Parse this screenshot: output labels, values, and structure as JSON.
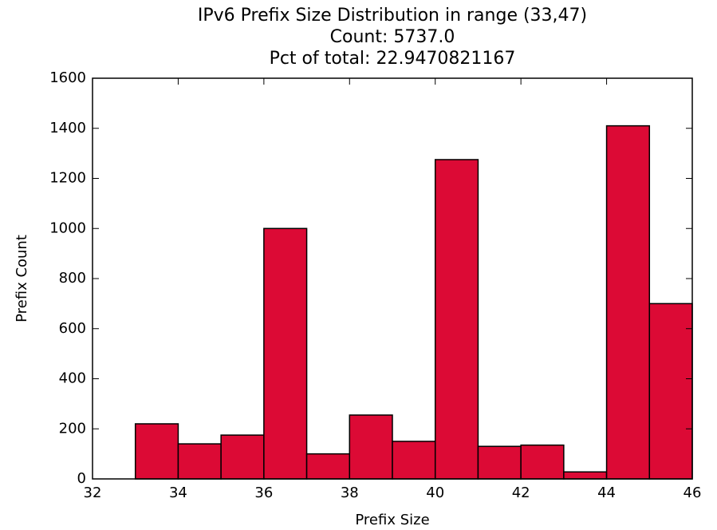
{
  "chart_data": {
    "type": "histogram",
    "title": [
      "IPv6 Prefix Size Distribution in range (33,47)",
      "Count: 5737.0",
      "Pct of total: 22.9470821167"
    ],
    "x_label": "Prefix Size",
    "y_label": "Prefix Count",
    "bins": [
      33,
      34,
      35,
      36,
      37,
      38,
      39,
      40,
      41,
      42,
      43,
      44,
      45,
      46
    ],
    "values": [
      220,
      140,
      175,
      1000,
      100,
      255,
      150,
      1275,
      130,
      135,
      28,
      1410,
      700
    ],
    "color": "#dc0a35",
    "xlim": [
      32,
      46
    ],
    "xticks": [
      32,
      34,
      36,
      38,
      40,
      42,
      44,
      46
    ],
    "ylim": [
      0,
      1600
    ],
    "yticks": [
      0,
      200,
      400,
      600,
      800,
      1000,
      1200,
      1400,
      1600
    ],
    "grid": false
  }
}
